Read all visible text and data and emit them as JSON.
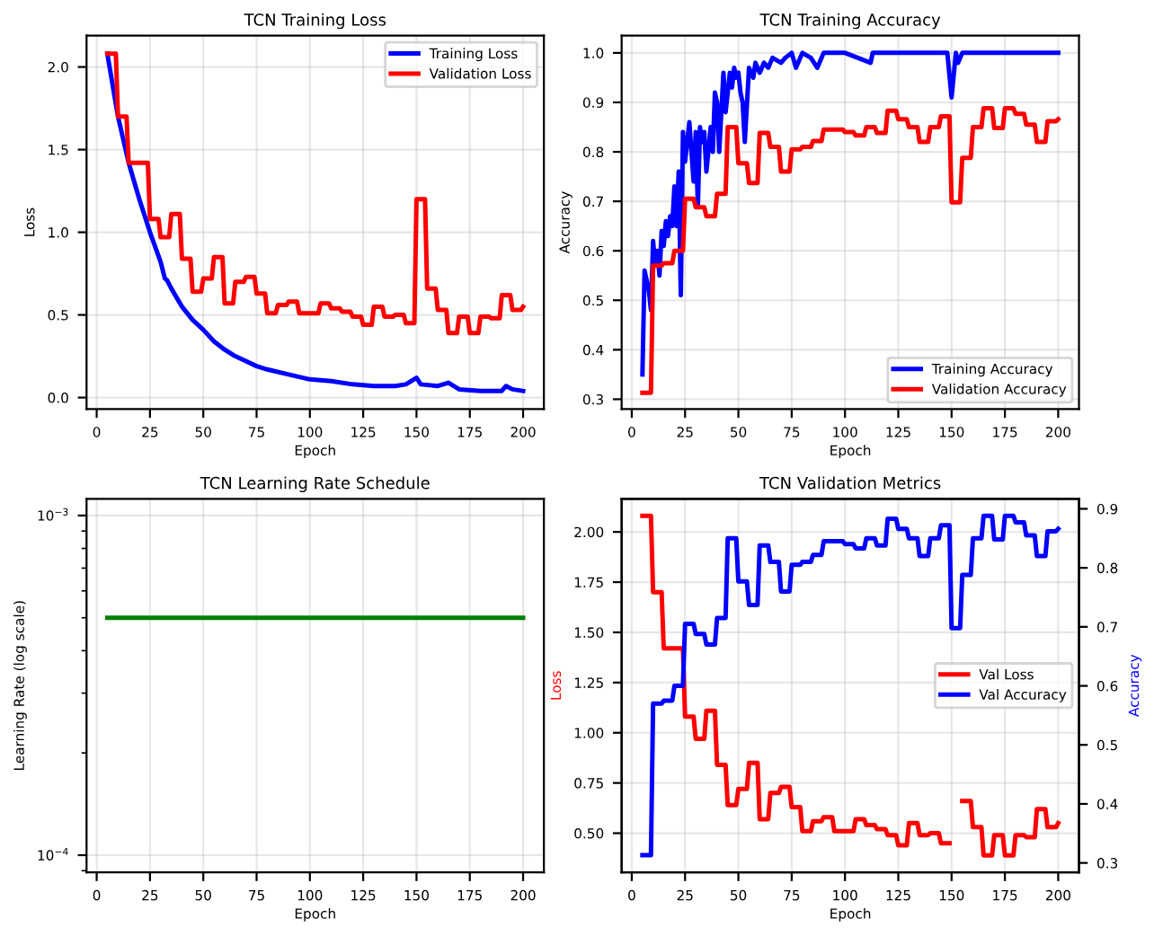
{
  "chart_data": [
    {
      "type": "line",
      "title": "TCN Training Loss",
      "xlabel": "Epoch",
      "ylabel": "Loss",
      "xlim": [
        -4.75,
        209.75
      ],
      "ylim": [
        -0.07,
        2.19
      ],
      "xticks": [
        0,
        25,
        50,
        75,
        100,
        125,
        150,
        175,
        200
      ],
      "yticks": [
        {
          "value": 0,
          "label": "0.0"
        },
        0.5,
        {
          "value": 1,
          "label": "1.0"
        },
        1.5,
        {
          "value": 2,
          "label": "2.0"
        }
      ],
      "grid": true,
      "legend": "top right",
      "line_style": "solid",
      "series": [
        {
          "name": "Training Loss",
          "color": "#0000ff",
          "x": [
            5,
            10,
            15,
            20,
            25,
            30,
            32,
            33,
            35,
            40,
            45,
            50,
            55,
            60,
            65,
            70,
            75,
            80,
            90,
            100,
            110,
            120,
            130,
            140,
            145,
            150,
            152,
            160,
            165,
            170,
            180,
            190,
            192,
            195,
            200
          ],
          "values": [
            2.08,
            1.7,
            1.42,
            1.2,
            1.0,
            0.82,
            0.72,
            0.71,
            0.66,
            0.55,
            0.47,
            0.41,
            0.34,
            0.29,
            0.25,
            0.22,
            0.19,
            0.17,
            0.14,
            0.11,
            0.1,
            0.08,
            0.07,
            0.07,
            0.08,
            0.12,
            0.08,
            0.07,
            0.09,
            0.05,
            0.04,
            0.04,
            0.07,
            0.05,
            0.04
          ]
        },
        {
          "name": "Validation Loss",
          "color": "#ff0000",
          "x": [
            5,
            9,
            10,
            14,
            15,
            24,
            25,
            29,
            30,
            34,
            35,
            39,
            40,
            44,
            45,
            49,
            50,
            54,
            55,
            59,
            60,
            64,
            65,
            69,
            70,
            74,
            75,
            79,
            80,
            84,
            85,
            89,
            90,
            94,
            95,
            104,
            105,
            109,
            110,
            114,
            115,
            119,
            120,
            124,
            125,
            129,
            130,
            134,
            135,
            139,
            140,
            144,
            145,
            149,
            150,
            154,
            155,
            159,
            160,
            164,
            165,
            169,
            170,
            174,
            175,
            179,
            180,
            184,
            185,
            189,
            190,
            194,
            195,
            199,
            200
          ],
          "values": [
            2.08,
            2.08,
            1.7,
            1.7,
            1.42,
            1.42,
            1.08,
            1.08,
            0.97,
            0.97,
            1.11,
            1.11,
            0.84,
            0.84,
            0.64,
            0.64,
            0.72,
            0.72,
            0.85,
            0.85,
            0.57,
            0.57,
            0.7,
            0.7,
            0.73,
            0.73,
            0.63,
            0.63,
            0.51,
            0.51,
            0.56,
            0.56,
            0.58,
            0.58,
            0.51,
            0.51,
            0.57,
            0.57,
            0.54,
            0.54,
            0.52,
            0.52,
            0.49,
            0.49,
            0.44,
            0.44,
            0.55,
            0.55,
            0.49,
            0.49,
            0.5,
            0.5,
            0.45,
            0.45,
            1.2,
            1.2,
            0.66,
            0.66,
            0.53,
            0.53,
            0.39,
            0.39,
            0.49,
            0.49,
            0.39,
            0.39,
            0.49,
            0.49,
            0.48,
            0.48,
            0.62,
            0.62,
            0.53,
            0.53,
            0.55
          ]
        }
      ]
    },
    {
      "type": "line",
      "title": "TCN Training Accuracy",
      "xlabel": "Epoch",
      "ylabel": "Accuracy",
      "xlim": [
        -4.75,
        209.75
      ],
      "ylim": [
        0.28,
        1.035
      ],
      "xticks": [
        0,
        25,
        50,
        75,
        100,
        125,
        150,
        175,
        200
      ],
      "yticks": [
        0.3,
        0.4,
        0.5,
        0.6,
        0.7,
        0.8,
        0.9,
        {
          "value": 1,
          "label": "1.0"
        }
      ],
      "grid": true,
      "legend": "bottom right",
      "line_style": "solid",
      "series": [
        {
          "name": "Training Accuracy",
          "color": "#0000ff",
          "x": [
            5,
            6,
            8,
            9,
            10,
            11,
            12,
            13,
            14,
            15,
            16,
            17,
            18,
            19,
            20,
            21,
            22,
            23,
            24,
            25,
            27,
            29,
            30,
            31,
            32,
            33,
            34,
            35,
            37,
            38,
            39,
            40,
            41,
            43,
            44,
            46,
            47,
            48,
            49,
            50,
            51,
            52,
            53,
            55,
            57,
            58,
            60,
            62,
            64,
            66,
            70,
            72,
            75,
            77,
            80,
            84,
            87,
            90,
            95,
            100,
            112,
            113,
            130,
            148,
            150,
            152,
            153,
            155,
            200
          ],
          "values": [
            0.35,
            0.56,
            0.52,
            0.48,
            0.62,
            0.57,
            0.6,
            0.55,
            0.64,
            0.61,
            0.66,
            0.63,
            0.67,
            0.65,
            0.73,
            0.65,
            0.76,
            0.51,
            0.84,
            0.78,
            0.86,
            0.74,
            0.84,
            0.69,
            0.85,
            0.82,
            0.84,
            0.76,
            0.85,
            0.8,
            0.92,
            0.9,
            0.8,
            0.96,
            0.88,
            0.96,
            0.93,
            0.97,
            0.95,
            0.96,
            0.92,
            0.9,
            0.82,
            0.97,
            0.95,
            0.98,
            0.96,
            0.98,
            0.97,
            0.99,
            0.98,
            0.99,
            1.0,
            0.97,
            1.0,
            0.99,
            0.97,
            1.0,
            1.0,
            1.0,
            0.98,
            1.0,
            1.0,
            1.0,
            0.91,
            1.0,
            0.98,
            1.0,
            1.0
          ]
        },
        {
          "name": "Validation Accuracy",
          "color": "#ff0000",
          "x": [
            5,
            9,
            10,
            14,
            15,
            19,
            20,
            24,
            25,
            29,
            30,
            34,
            35,
            39,
            40,
            44,
            45,
            49,
            50,
            54,
            55,
            59,
            60,
            64,
            65,
            69,
            70,
            74,
            75,
            79,
            80,
            84,
            85,
            89,
            90,
            99,
            100,
            104,
            105,
            109,
            110,
            114,
            115,
            119,
            120,
            124,
            125,
            129,
            130,
            134,
            135,
            139,
            140,
            144,
            145,
            149,
            150,
            154,
            155,
            159,
            160,
            164,
            165,
            169,
            170,
            174,
            175,
            179,
            180,
            184,
            185,
            189,
            190,
            194,
            195,
            199,
            200
          ],
          "values": [
            0.313,
            0.313,
            0.57,
            0.57,
            0.575,
            0.575,
            0.6,
            0.6,
            0.705,
            0.705,
            0.688,
            0.688,
            0.67,
            0.67,
            0.715,
            0.715,
            0.85,
            0.85,
            0.777,
            0.777,
            0.737,
            0.737,
            0.838,
            0.838,
            0.81,
            0.81,
            0.76,
            0.76,
            0.805,
            0.805,
            0.81,
            0.81,
            0.822,
            0.822,
            0.845,
            0.845,
            0.84,
            0.84,
            0.833,
            0.833,
            0.85,
            0.85,
            0.838,
            0.838,
            0.883,
            0.883,
            0.866,
            0.866,
            0.85,
            0.85,
            0.82,
            0.82,
            0.85,
            0.85,
            0.872,
            0.872,
            0.698,
            0.698,
            0.788,
            0.788,
            0.85,
            0.85,
            0.888,
            0.888,
            0.848,
            0.848,
            0.888,
            0.888,
            0.877,
            0.877,
            0.855,
            0.855,
            0.82,
            0.82,
            0.862,
            0.862,
            0.866
          ]
        }
      ]
    },
    {
      "type": "line",
      "title": "TCN Learning Rate Schedule",
      "xlabel": "Epoch",
      "ylabel": "Learning Rate (log scale)",
      "log": "y",
      "xlim": [
        -4.75,
        209.75
      ],
      "ylim": [
        8.9e-05,
        0.00112
      ],
      "xticks": [
        0,
        25,
        50,
        75,
        100,
        125,
        150,
        175,
        200
      ],
      "yticks": [
        {
          "value": 0.0001,
          "label": "10$^{−4}$"
        },
        {
          "value": 0.001,
          "label": "10$^{−3}$"
        }
      ],
      "grid": true,
      "line_style": "solid",
      "series": [
        {
          "color": "#008000",
          "x": [
            5,
            200
          ],
          "values": [
            0.0005,
            0.0005
          ]
        }
      ]
    },
    {
      "type": "line",
      "title": "TCN Validation Metrics",
      "xlabel": "Epoch",
      "ylabel": "Loss",
      "y2label": "Accuracy",
      "xlim": [
        -4.75,
        209.75
      ],
      "ylim": [
        0.305,
        2.165
      ],
      "y2lim": [
        0.284,
        0.917
      ],
      "xticks": [
        0,
        25,
        50,
        75,
        100,
        125,
        150,
        175,
        200
      ],
      "yticks": [
        {
          "value": 0.5,
          "label": "0.50"
        },
        {
          "value": 0.75,
          "label": "0.75"
        },
        {
          "value": 1.0,
          "label": "1.00"
        },
        {
          "value": 1.25,
          "label": "1.25"
        },
        {
          "value": 1.5,
          "label": "1.50"
        },
        {
          "value": 1.75,
          "label": "1.75"
        },
        {
          "value": 2.0,
          "label": "2.00"
        }
      ],
      "y2ticks": [
        0.3,
        0.4,
        0.5,
        0.6,
        0.7,
        0.8,
        0.9
      ],
      "grid": true,
      "legend": "right",
      "line_style": "solid",
      "series": [
        {
          "name": "Val Loss",
          "color": "#ff0000",
          "x": [
            5,
            9,
            10,
            14,
            15,
            24,
            25,
            29,
            30,
            34,
            35,
            39,
            40,
            44,
            45,
            49,
            50,
            54,
            55,
            59,
            60,
            64,
            65,
            69,
            70,
            74,
            75,
            79,
            80,
            84,
            85,
            89,
            90,
            94,
            95,
            104,
            105,
            109,
            110,
            114,
            115,
            119,
            120,
            124,
            125,
            129,
            130,
            134,
            135,
            139,
            140,
            144,
            145,
            149,
            150,
            154,
            155,
            159,
            160,
            164,
            165,
            169,
            170,
            174,
            175,
            179,
            180,
            184,
            185,
            189,
            190,
            194,
            195,
            199,
            200
          ],
          "values": [
            2.08,
            2.08,
            1.7,
            1.7,
            1.42,
            1.42,
            1.08,
            1.08,
            0.97,
            0.97,
            1.11,
            1.11,
            0.84,
            0.84,
            0.64,
            0.64,
            0.72,
            0.72,
            0.85,
            0.85,
            0.57,
            0.57,
            0.7,
            0.7,
            0.73,
            0.73,
            0.63,
            0.63,
            0.51,
            0.51,
            0.56,
            0.56,
            0.58,
            0.58,
            0.51,
            0.51,
            0.57,
            0.57,
            0.54,
            0.54,
            0.52,
            0.52,
            0.49,
            0.49,
            0.44,
            0.44,
            0.55,
            0.55,
            0.49,
            0.49,
            0.5,
            0.5,
            0.45,
            0.45,
            null,
            null,
            0.66,
            0.66,
            0.53,
            0.53,
            0.39,
            0.39,
            0.49,
            0.49,
            0.39,
            0.39,
            0.49,
            0.49,
            0.48,
            0.48,
            0.62,
            0.62,
            0.53,
            0.53,
            0.55
          ]
        },
        {
          "name": "Val Accuracy",
          "color": "#0000ff",
          "axis": "y2",
          "x": [
            5,
            9,
            10,
            14,
            15,
            19,
            20,
            24,
            25,
            29,
            30,
            34,
            35,
            39,
            40,
            44,
            45,
            49,
            50,
            54,
            55,
            59,
            60,
            64,
            65,
            69,
            70,
            74,
            75,
            79,
            80,
            84,
            85,
            89,
            90,
            99,
            100,
            104,
            105,
            109,
            110,
            114,
            115,
            119,
            120,
            124,
            125,
            129,
            130,
            134,
            135,
            139,
            140,
            144,
            145,
            149,
            150,
            154,
            155,
            159,
            160,
            164,
            165,
            169,
            170,
            174,
            175,
            179,
            180,
            184,
            185,
            189,
            190,
            194,
            195,
            199,
            200
          ],
          "values": [
            0.313,
            0.313,
            0.57,
            0.57,
            0.575,
            0.575,
            0.6,
            0.6,
            0.705,
            0.705,
            0.688,
            0.688,
            0.67,
            0.67,
            0.715,
            0.715,
            0.85,
            0.85,
            0.777,
            0.777,
            0.737,
            0.737,
            0.838,
            0.838,
            0.81,
            0.81,
            0.76,
            0.76,
            0.805,
            0.805,
            0.81,
            0.81,
            0.822,
            0.822,
            0.845,
            0.845,
            0.84,
            0.84,
            0.833,
            0.833,
            0.85,
            0.85,
            0.838,
            0.838,
            0.883,
            0.883,
            0.866,
            0.866,
            0.85,
            0.85,
            0.82,
            0.82,
            0.85,
            0.85,
            0.872,
            0.872,
            0.698,
            0.698,
            0.788,
            0.788,
            0.85,
            0.85,
            0.888,
            0.888,
            0.848,
            0.848,
            0.888,
            0.888,
            0.877,
            0.877,
            0.855,
            0.855,
            0.82,
            0.82,
            0.862,
            0.862,
            0.866
          ]
        }
      ]
    }
  ]
}
